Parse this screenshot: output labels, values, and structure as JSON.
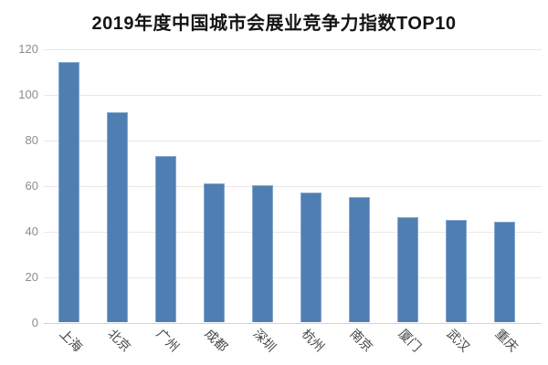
{
  "chart_data": {
    "type": "bar",
    "title": "2019年度中国城市会展业竞争力指数TOP10",
    "categories": [
      "上海",
      "北京",
      "广州",
      "成都",
      "深圳",
      "杭州",
      "南京",
      "厦门",
      "武汉",
      "重庆"
    ],
    "values": [
      114,
      92,
      73,
      61,
      60,
      57,
      55,
      46,
      45,
      44
    ],
    "xlabel": "",
    "ylabel": "",
    "ylim": [
      0,
      120
    ],
    "yticks": [
      0,
      20,
      40,
      60,
      80,
      100,
      120
    ],
    "grid": true,
    "legend_position": "none",
    "colors": {
      "bar": "#4f7eb2",
      "bar_edge": "#84a8cf",
      "gridline": "#ebe7e3",
      "axis_line": "#d6d2ce",
      "y_tick_text": "#8d8d8d",
      "x_tick_text": "#454545",
      "title_text": "#141414",
      "background": "#ffffff"
    }
  }
}
